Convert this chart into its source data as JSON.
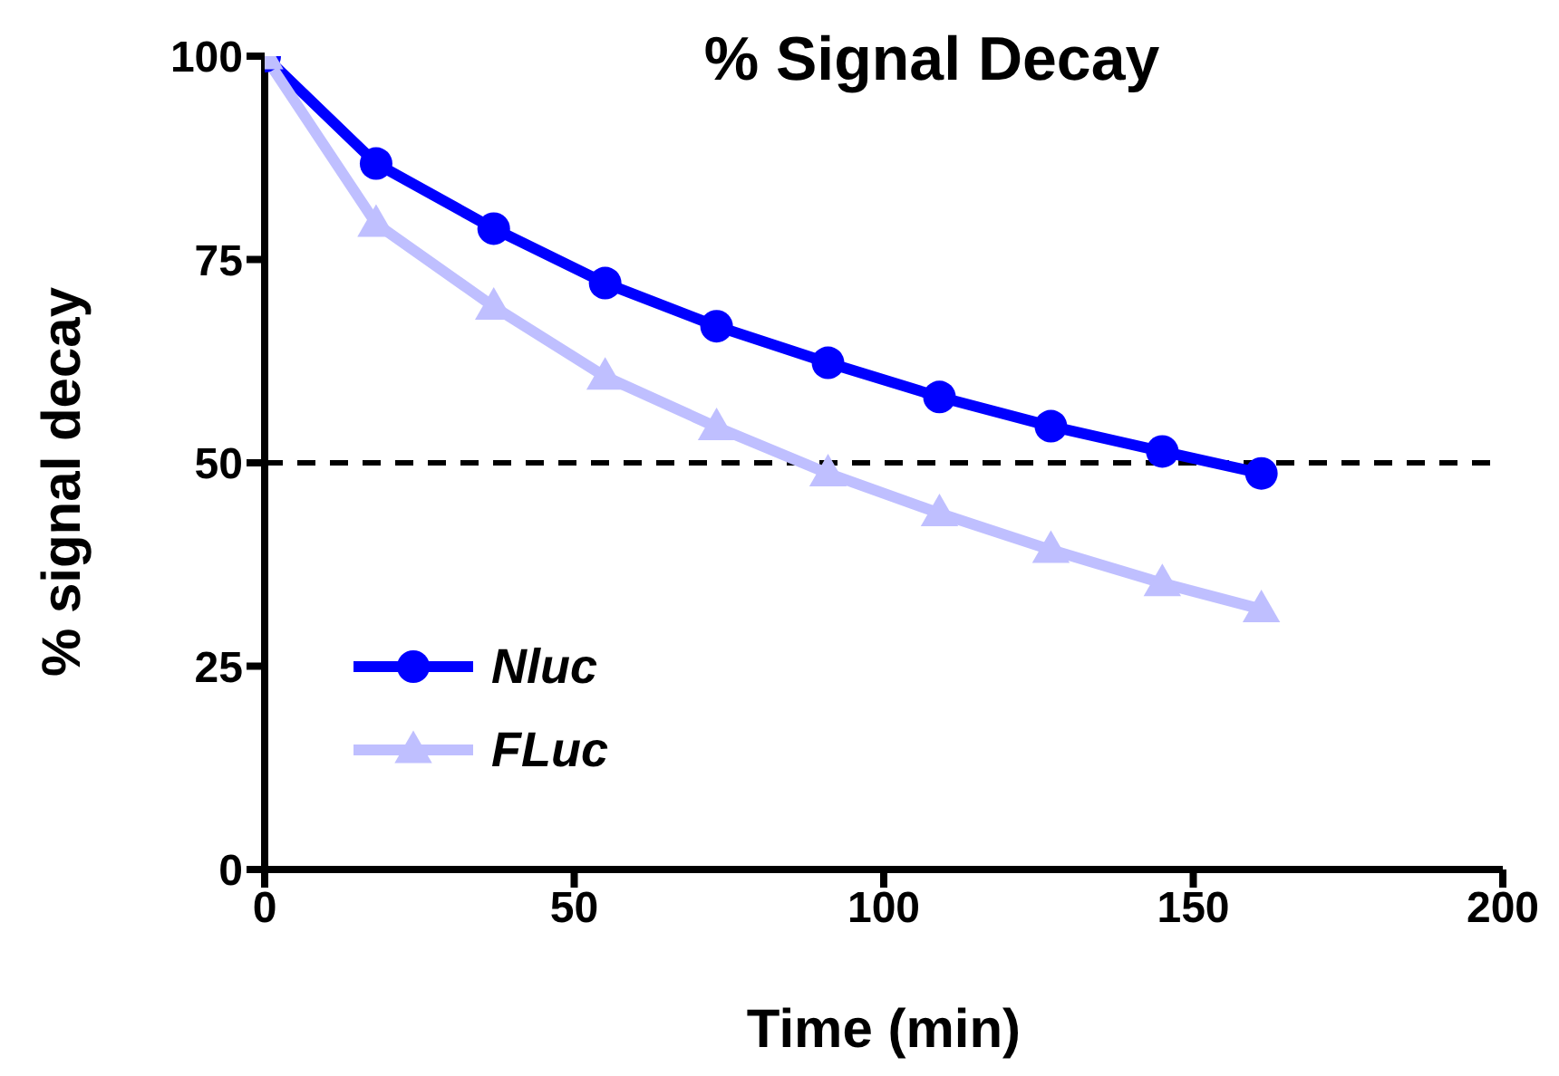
{
  "chart_data": {
    "type": "line",
    "title": "% Signal Decay",
    "xlabel": "Time (min)",
    "ylabel": "% signal decay",
    "x": [
      0,
      18,
      37,
      55,
      73,
      91,
      109,
      127,
      145,
      161
    ],
    "series": [
      {
        "name": "Nluc",
        "color": "#0000ff",
        "marker": "circle",
        "values": [
          100,
          86.8,
          78.8,
          72.1,
          66.8,
          62.3,
          58.1,
          54.5,
          51.4,
          48.7
        ]
      },
      {
        "name": "FLuc",
        "color": "#bfbfff",
        "marker": "triangle",
        "values": [
          100,
          79.4,
          69.2,
          60.6,
          54.4,
          48.7,
          43.8,
          39.3,
          35.2,
          32.0
        ]
      }
    ],
    "xlim": [
      0,
      200
    ],
    "xticks": [
      0,
      50,
      100,
      150,
      200
    ],
    "ylim": [
      0,
      100
    ],
    "yticks": [
      0,
      25,
      50,
      75,
      100
    ],
    "ref_lines": [
      {
        "axis": "y",
        "value": 50,
        "color": "#000000",
        "line_style": "dashed"
      }
    ],
    "grid": false,
    "legend": "bottom left",
    "line_style": "solid"
  }
}
